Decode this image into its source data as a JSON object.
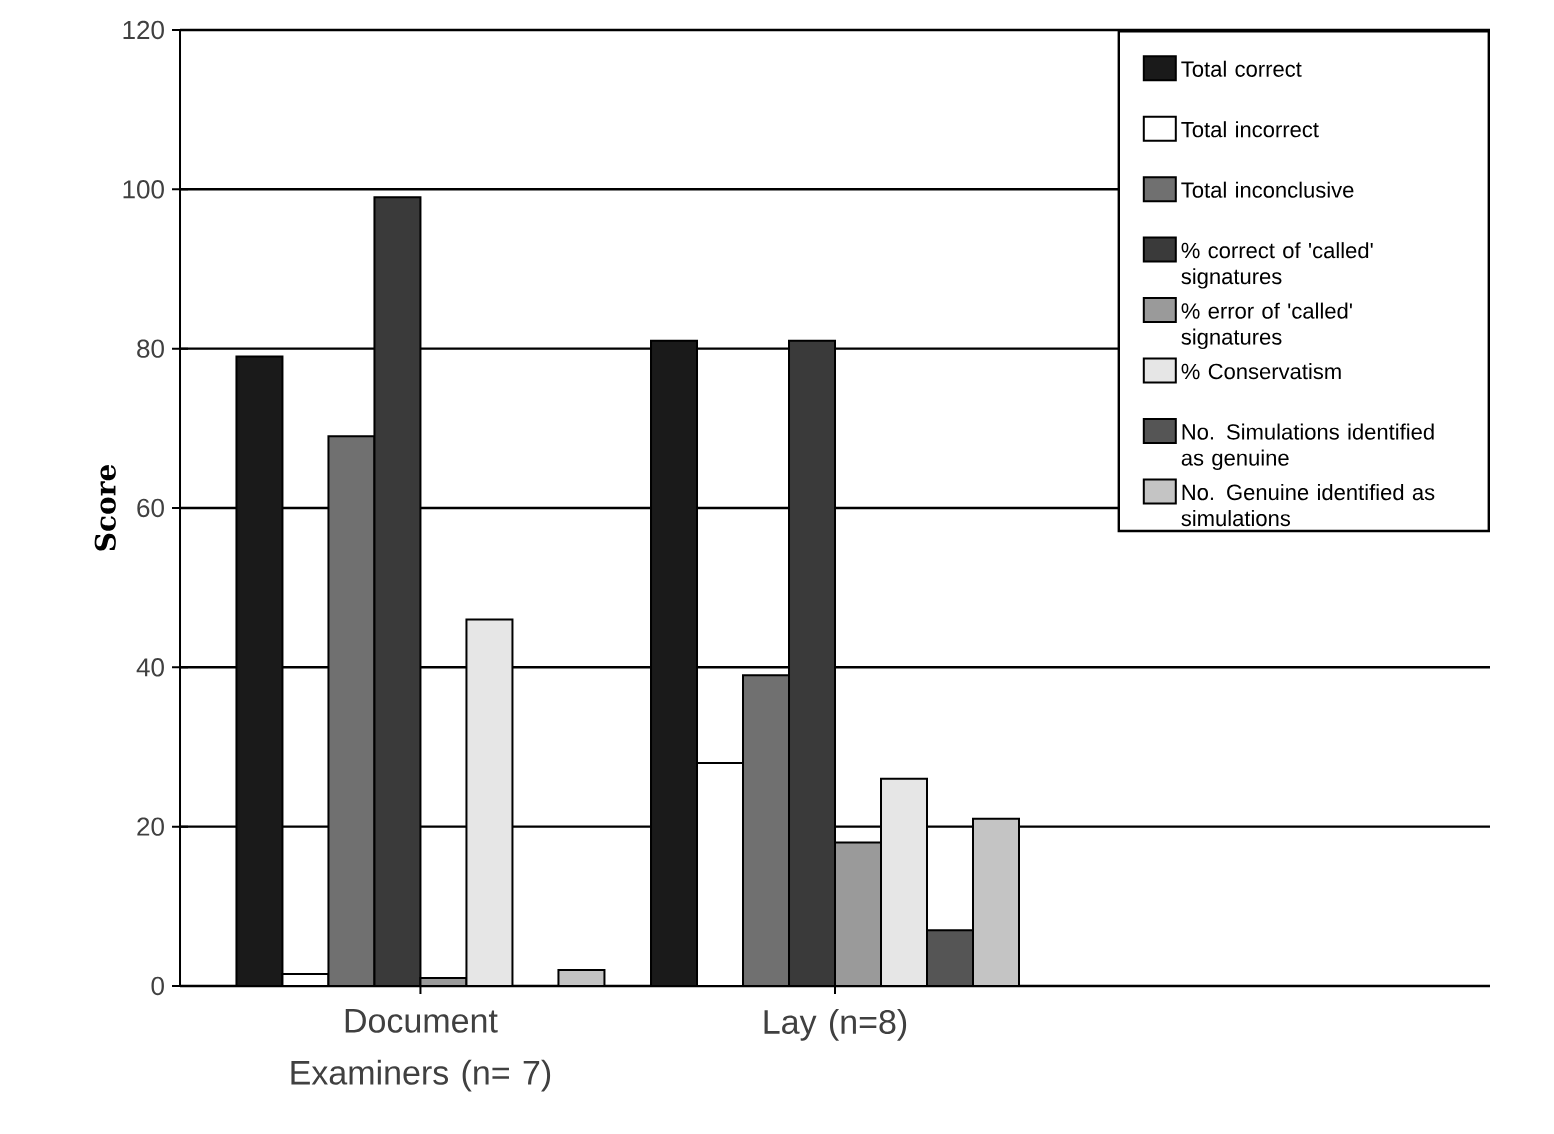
{
  "chart_data": {
    "type": "bar",
    "ylabel": "Score",
    "categories": [
      "Document Examiners (n= 7)",
      "Lay (n=8)"
    ],
    "ylim": [
      0,
      120
    ],
    "yticks": [
      0,
      20,
      40,
      60,
      80,
      100,
      120
    ],
    "grid": "y",
    "legend": "top right",
    "series": [
      {
        "name": "Total correct",
        "color": "#1a1a1a",
        "values": [
          79,
          81
        ]
      },
      {
        "name": "Total incorrect",
        "color": "#ffffff",
        "values": [
          1.5,
          28
        ]
      },
      {
        "name": "Total inconclusive",
        "color": "#707070",
        "values": [
          69,
          39
        ]
      },
      {
        "name": "% correct of 'called' signatures",
        "color": "#3a3a3a",
        "values": [
          99,
          81
        ]
      },
      {
        "name": "% error of 'called' signatures",
        "color": "#9a9a9a",
        "values": [
          1,
          18
        ]
      },
      {
        "name": "% Conservatism",
        "color": "#e6e6e6",
        "values": [
          46,
          26
        ]
      },
      {
        "name": "No. Simulations identified as genuine",
        "color": "#555555",
        "values": [
          null,
          7
        ]
      },
      {
        "name": "No. Genuine identified as simulations",
        "color": "#c4c4c4",
        "values": [
          2,
          21
        ]
      }
    ]
  }
}
